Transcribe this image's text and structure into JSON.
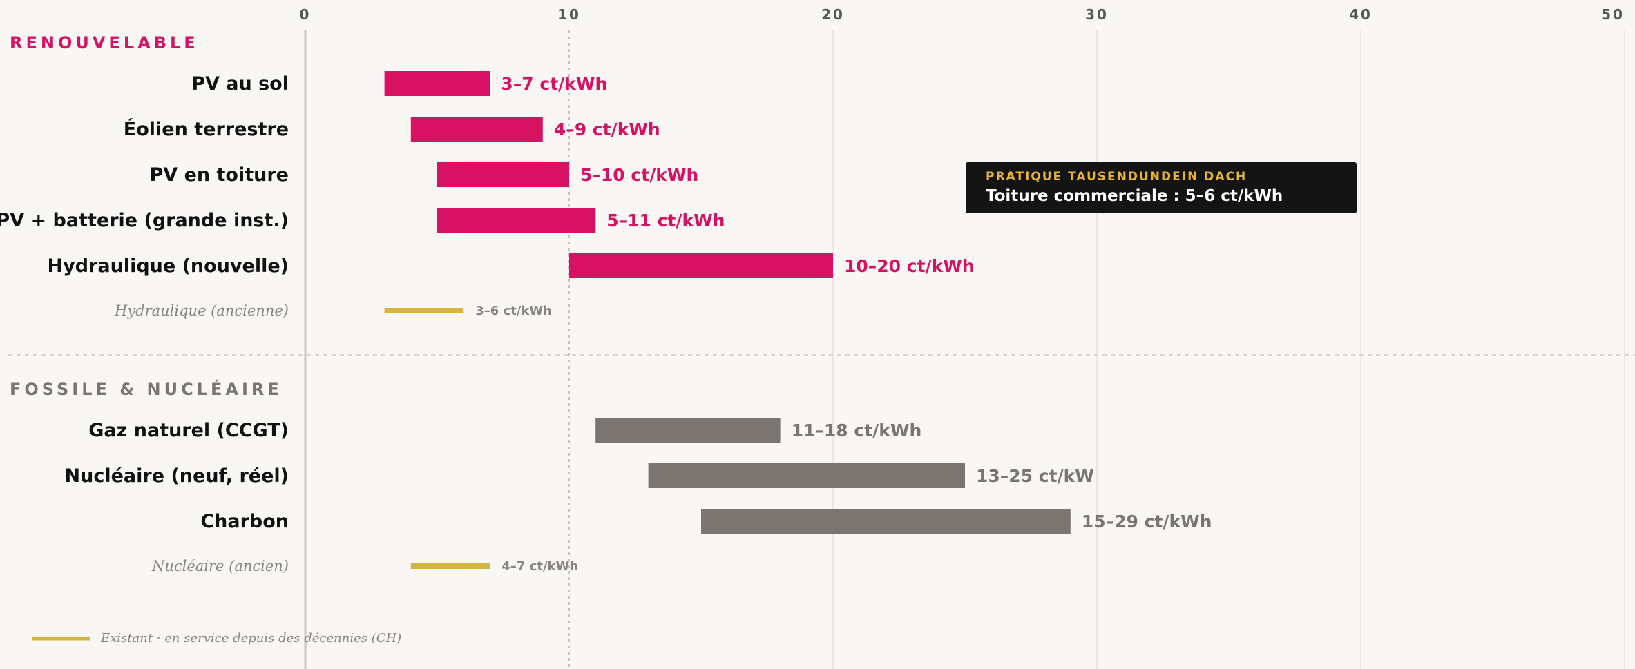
{
  "colors": {
    "renewable": "#d81163",
    "fossil": "#7a7570",
    "legacy": "#d4b540",
    "axis": "#c9c6c1",
    "grid": "#ebe8e3"
  },
  "chart_data": {
    "type": "bar",
    "orientation": "horizontal-range",
    "unit": "ct/kWh",
    "xlim": [
      0,
      50
    ],
    "x_ticks": [
      0,
      10,
      20,
      30,
      40,
      50
    ],
    "grid": true,
    "sections": [
      {
        "title": "RENOUVELABLE",
        "color": "#d81163",
        "rows": [
          {
            "label": "PV au sol",
            "low": 3,
            "high": 7,
            "value_label": "3–7 ct/kWh",
            "kind": "main"
          },
          {
            "label": "Éolien terrestre",
            "low": 4,
            "high": 9,
            "value_label": "4–9 ct/kWh",
            "kind": "main"
          },
          {
            "label": "PV en toiture",
            "low": 5,
            "high": 10,
            "value_label": "5–10 ct/kWh",
            "kind": "main"
          },
          {
            "label": "PV + batterie (grande inst.)",
            "low": 5,
            "high": 11,
            "value_label": "5–11 ct/kWh",
            "kind": "main"
          },
          {
            "label": "Hydraulique (nouvelle)",
            "low": 10,
            "high": 20,
            "value_label": "10–20 ct/kWh",
            "kind": "main"
          },
          {
            "label": "Hydraulique (ancienne)",
            "low": 3,
            "high": 6,
            "value_label": "3–6 ct/kWh",
            "kind": "legacy"
          }
        ]
      },
      {
        "title": "FOSSILE & NUCLÉAIRE",
        "color": "#7a7570",
        "rows": [
          {
            "label": "Gaz naturel (CCGT)",
            "low": 11,
            "high": 18,
            "value_label": "11–18 ct/kWh",
            "kind": "main"
          },
          {
            "label": "Nucléaire (neuf, réel)",
            "low": 13,
            "high": 25,
            "value_label": "13–25 ct/kW",
            "kind": "main"
          },
          {
            "label": "Charbon",
            "low": 15,
            "high": 29,
            "value_label": "15–29 ct/kWh",
            "kind": "main"
          },
          {
            "label": "Nucléaire (ancien)",
            "low": 4,
            "high": 7,
            "value_label": "4–7 ct/kWh",
            "kind": "legacy"
          }
        ]
      }
    ],
    "legend": [
      {
        "label": "Existant · en service depuis des décennies (CH)",
        "color": "#d4b540",
        "placement": "bottom-left"
      }
    ]
  },
  "callout": {
    "eyebrow": "PRATIQUE TAUSENDUNDEIN DACH",
    "text": "Toiture commerciale : 5–6 ct/kWh"
  }
}
